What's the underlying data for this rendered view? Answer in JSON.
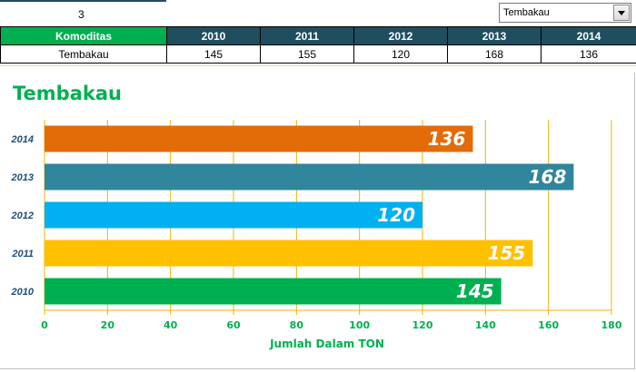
{
  "sheet": {
    "index_value": "3",
    "dropdown_value": "Tembakau",
    "table": {
      "headers": [
        "Komoditas",
        "2010",
        "2011",
        "2012",
        "2013",
        "2014"
      ],
      "row": [
        "Tembakau",
        "145",
        "155",
        "120",
        "168",
        "136"
      ]
    }
  },
  "chart_data": {
    "type": "bar",
    "orientation": "horizontal",
    "title": "Tembakau",
    "xlabel": "Jumlah Dalam TON",
    "ylabel": "",
    "categories": [
      "2010",
      "2011",
      "2012",
      "2013",
      "2014"
    ],
    "values": [
      145,
      155,
      120,
      168,
      136
    ],
    "colors": [
      "#00b050",
      "#ffc000",
      "#00b0f0",
      "#31859c",
      "#e36c09"
    ],
    "xlim": [
      0,
      180
    ],
    "xticks": [
      0,
      20,
      40,
      60,
      80,
      100,
      120,
      140,
      160,
      180
    ],
    "grid": true,
    "gridline_color": "#f0b400",
    "axis_label_color": "#00b050",
    "category_label_color": "#1f4e79",
    "data_labels": true
  }
}
